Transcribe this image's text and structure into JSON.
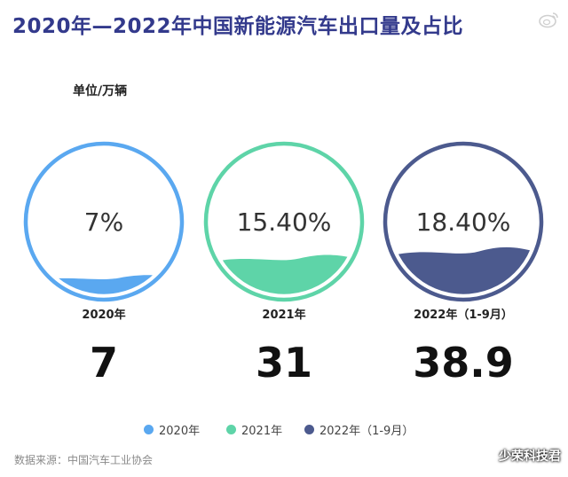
{
  "title": "2020年—2022年中国新能源汽车出口量及占比",
  "unit": "单位/万辆",
  "source": "数据来源：中国汽车工业协会",
  "watermark": "少荣科技君",
  "colors": {
    "title": "#333a8c",
    "series": [
      "#5aa8f0",
      "#5ed4a8",
      "#4c5a8e"
    ]
  },
  "chart_data": {
    "type": "bar",
    "categories": [
      "2020年",
      "2021年",
      "2022年（1-9月）"
    ],
    "series": [
      {
        "values": [
          7,
          31,
          38.9
        ]
      },
      {
        "values": [
          7,
          15.4,
          18.4
        ]
      }
    ],
    "data_labels": {
      "share": [
        "7%",
        "15.40%",
        "18.40%"
      ],
      "volume": [
        "7",
        "31",
        "38.9"
      ]
    },
    "legend": {
      "entries": [
        "2020年",
        "2021年",
        "2022年（1-9月）"
      ],
      "placement": "bottom"
    }
  }
}
